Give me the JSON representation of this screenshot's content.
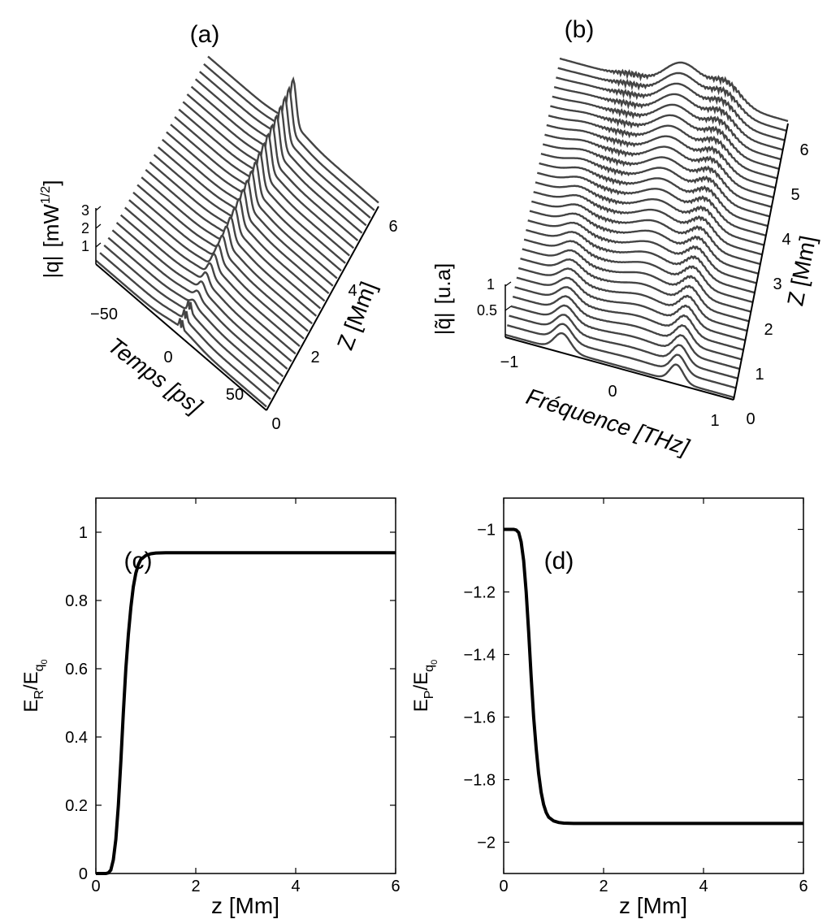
{
  "figure": {
    "panels": [
      "(a)",
      "(b)",
      "(c)",
      "(d)"
    ]
  },
  "chart_data": [
    {
      "type": "line",
      "subtype": "waterfall-3d",
      "panel_label": "(a)",
      "xlabel": "Temps [ps]",
      "ylabel": "Z [Mm]",
      "zlabel_main": "|q|",
      "zlabel_unit_base": "[mW",
      "zlabel_unit_exp": "1/2",
      "zlabel_unit_close": "]",
      "x_ticks": [
        "−50",
        "0",
        "50"
      ],
      "y_ticks": [
        "0",
        "2",
        "4",
        "6"
      ],
      "z_ticks": [
        "1",
        "2",
        "3"
      ],
      "xlim": [
        -75,
        75
      ],
      "ylim": [
        0,
        6
      ],
      "zlim": [
        0,
        3
      ],
      "n_traces": 28,
      "trace_color": "#444444",
      "description_series": [
        {
          "z": 0,
          "center_ps": 0,
          "peak": 0.3
        },
        {
          "z": 6,
          "center_ps": 0,
          "peak": 2.6
        }
      ]
    },
    {
      "type": "line",
      "subtype": "waterfall-3d",
      "panel_label": "(b)",
      "xlabel": "Fréquence [THz]",
      "ylabel": "Z [Mm]",
      "zlabel_main": "|q̃|",
      "zlabel_unit_base": "[u.a]",
      "x_ticks": [
        "−1",
        "0",
        "1"
      ],
      "y_ticks": [
        "0",
        "1",
        "2",
        "3",
        "4",
        "5",
        "6"
      ],
      "z_ticks": [
        "0.5",
        "1"
      ],
      "xlim": [
        -1.2,
        1.2
      ],
      "ylim": [
        0,
        6
      ],
      "zlim": [
        0,
        1
      ],
      "n_traces": 30,
      "trace_color": "#444444"
    },
    {
      "type": "line",
      "panel_label": "(c)",
      "xlabel": "z [Mm]",
      "ylabel_main": "E",
      "ylabel_sub1": "R",
      "ylabel_sep": "/E",
      "ylabel_sub2": "q",
      "ylabel_sub3": "0",
      "xlim": [
        0,
        6
      ],
      "ylim": [
        0,
        1.1
      ],
      "x_ticks": [
        0,
        2,
        4,
        6
      ],
      "y_ticks": [
        0,
        0.2,
        0.4,
        0.6,
        0.8,
        1
      ],
      "x_tick_labels": [
        "0",
        "2",
        "4",
        "6"
      ],
      "y_tick_labels": [
        "0",
        "0.2",
        "0.4",
        "0.6",
        "0.8",
        "1"
      ],
      "series": [
        {
          "x": [
            0,
            0.1,
            0.2,
            0.25,
            0.3,
            0.35,
            0.4,
            0.45,
            0.5,
            0.55,
            0.6,
            0.65,
            0.7,
            0.75,
            0.8,
            0.85,
            0.9,
            1.0,
            1.1,
            1.2,
            1.4,
            1.6,
            2.0,
            3.0,
            4.0,
            5.0,
            6.0
          ],
          "y": [
            0,
            0,
            0,
            0.002,
            0.01,
            0.04,
            0.1,
            0.2,
            0.33,
            0.47,
            0.6,
            0.7,
            0.78,
            0.84,
            0.88,
            0.905,
            0.92,
            0.932,
            0.937,
            0.939,
            0.94,
            0.94,
            0.94,
            0.94,
            0.94,
            0.94,
            0.94
          ]
        }
      ]
    },
    {
      "type": "line",
      "panel_label": "(d)",
      "xlabel": "z [Mm]",
      "ylabel_main": "E",
      "ylabel_sub1": "P",
      "ylabel_sep": "/E",
      "ylabel_sub2": "q",
      "ylabel_sub3": "0",
      "xlim": [
        0,
        6
      ],
      "ylim": [
        -2.1,
        -0.9
      ],
      "x_ticks": [
        0,
        2,
        4,
        6
      ],
      "y_ticks": [
        -2,
        -1.8,
        -1.6,
        -1.4,
        -1.2,
        -1
      ],
      "x_tick_labels": [
        "0",
        "2",
        "4",
        "6"
      ],
      "y_tick_labels": [
        "−2",
        "−1.8",
        "−1.6",
        "−1.4",
        "−1.2",
        "−1"
      ],
      "series": [
        {
          "x": [
            0,
            0.1,
            0.2,
            0.25,
            0.3,
            0.35,
            0.4,
            0.45,
            0.5,
            0.55,
            0.6,
            0.65,
            0.7,
            0.75,
            0.8,
            0.85,
            0.9,
            1.0,
            1.1,
            1.2,
            1.4,
            1.6,
            2.0,
            3.0,
            4.0,
            5.0,
            6.0
          ],
          "y": [
            -1.0,
            -1.0,
            -1.0,
            -1.002,
            -1.01,
            -1.04,
            -1.1,
            -1.2,
            -1.33,
            -1.47,
            -1.6,
            -1.7,
            -1.78,
            -1.84,
            -1.88,
            -1.905,
            -1.92,
            -1.932,
            -1.937,
            -1.939,
            -1.94,
            -1.94,
            -1.94,
            -1.94,
            -1.94,
            -1.94,
            -1.94
          ]
        }
      ]
    }
  ]
}
